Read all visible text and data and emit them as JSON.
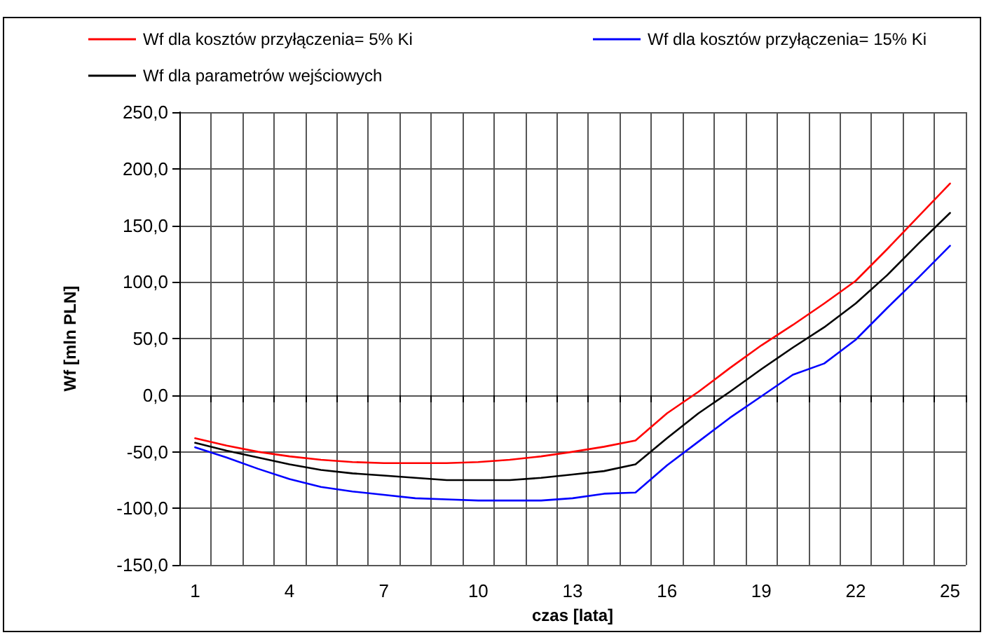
{
  "chart_data": {
    "type": "line",
    "xlabel": "czas [lata]",
    "ylabel": "Wf [mln PLN]",
    "categories": [
      "1",
      null,
      null,
      "4",
      null,
      null,
      "7",
      null,
      null,
      "10",
      null,
      null,
      "13",
      null,
      null,
      "16",
      null,
      null,
      "19",
      null,
      null,
      "22",
      null,
      null,
      "25"
    ],
    "series": [
      {
        "name": "Wf dla kosztów przyłączenia= 5% Ki",
        "color": "#ff0000",
        "values": [
          -38,
          -44.5,
          -50,
          -54,
          -57,
          -59,
          -60,
          -60,
          -60,
          -59,
          -57,
          -54,
          -50,
          -45.5,
          -40,
          -16,
          3,
          24,
          44,
          62,
          81,
          101,
          129,
          158,
          187
        ]
      },
      {
        "name": "Wf dla kosztów przyłączenia= 15% Ki",
        "color": "#0000ff",
        "values": [
          -46,
          -55,
          -65,
          -74,
          -81,
          -85,
          -88,
          -91,
          -92,
          -93,
          -93,
          -93,
          -91,
          -87,
          -86,
          -62,
          -41,
          -20,
          -1,
          18,
          28,
          49,
          77,
          104,
          132
        ]
      },
      {
        "name": "Wf dla parametrów wejściowych",
        "color": "#000000",
        "values": [
          -42,
          -49,
          -55,
          -61,
          -66,
          -69,
          -71,
          -73,
          -75,
          -75,
          -75,
          -73,
          -70,
          -67,
          -61,
          -38,
          -16,
          3,
          23,
          42,
          60,
          81,
          106,
          134,
          161
        ]
      }
    ],
    "ylim": [
      -150,
      250
    ],
    "yticks": [
      {
        "value": -150,
        "label": "-150,0"
      },
      {
        "value": -100,
        "label": "-100,0"
      },
      {
        "value": -50,
        "label": "-50,0"
      },
      {
        "value": 0,
        "label": "0,0"
      },
      {
        "value": 50,
        "label": "50,0"
      },
      {
        "value": 100,
        "label": "100,0"
      },
      {
        "value": 150,
        "label": "150,0"
      },
      {
        "value": 200,
        "label": "200,0"
      },
      {
        "value": 250,
        "label": "250,0"
      }
    ],
    "grid": true,
    "legend": "top",
    "marker": "none",
    "line_style": "solid"
  }
}
